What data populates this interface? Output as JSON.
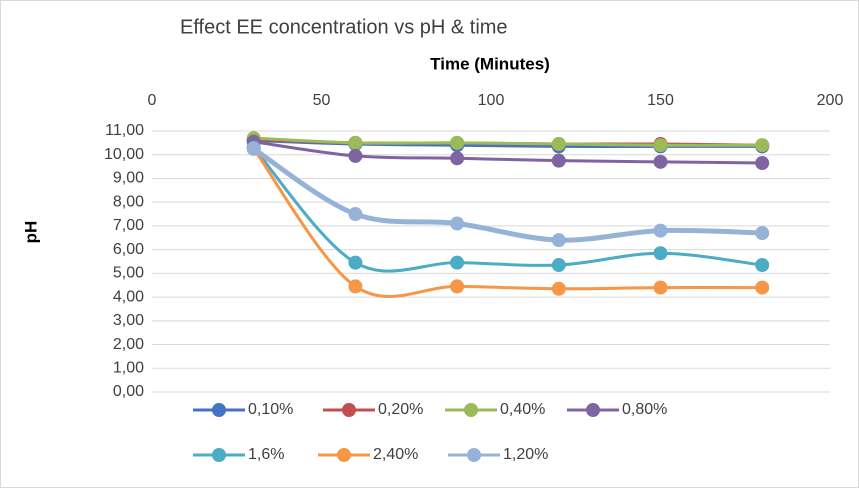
{
  "chart_data": {
    "type": "line",
    "title": "Effect EE concentration vs pH & time",
    "xlabel": "Time (Minutes)",
    "ylabel": "pH",
    "x": [
      30,
      60,
      90,
      120,
      150,
      180
    ],
    "series": [
      {
        "name": "0,10%",
        "color": "#4472c4",
        "values": [
          10.6,
          10.45,
          10.4,
          10.35,
          10.35,
          10.35
        ]
      },
      {
        "name": "0,20%",
        "color": "#c0504d",
        "values": [
          10.65,
          10.5,
          10.5,
          10.45,
          10.45,
          10.4
        ]
      },
      {
        "name": "0,40%",
        "color": "#9bbb59",
        "values": [
          10.7,
          10.5,
          10.5,
          10.45,
          10.4,
          10.4
        ]
      },
      {
        "name": "0,80%",
        "color": "#8064a2",
        "values": [
          10.55,
          9.95,
          9.85,
          9.75,
          9.7,
          9.65
        ]
      },
      {
        "name": "1,6%",
        "color": "#4bacc6",
        "values": [
          10.3,
          5.45,
          5.45,
          5.35,
          5.85,
          5.35
        ]
      },
      {
        "name": "2,40%",
        "color": "#f79646",
        "values": [
          10.25,
          4.45,
          4.45,
          4.35,
          4.4,
          4.4
        ]
      },
      {
        "name": "1,20%",
        "color": "#95b3d7",
        "values": [
          10.25,
          7.5,
          7.1,
          6.4,
          6.8,
          6.7
        ]
      }
    ],
    "xlim": [
      0,
      200
    ],
    "xticks": [
      0,
      50,
      100,
      150,
      200
    ],
    "ylim": [
      0,
      11
    ],
    "yticks": [
      {
        "value": 0,
        "label": "0,00"
      },
      {
        "value": 1,
        "label": "1,00"
      },
      {
        "value": 2,
        "label": "2,00"
      },
      {
        "value": 3,
        "label": "3,00"
      },
      {
        "value": 4,
        "label": "4,00"
      },
      {
        "value": 5,
        "label": "5,00"
      },
      {
        "value": 6,
        "label": "6,00"
      },
      {
        "value": 7,
        "label": "7,00"
      },
      {
        "value": 8,
        "label": "8,00"
      },
      {
        "value": 9,
        "label": "9,00"
      },
      {
        "value": 10,
        "label": "10,00"
      },
      {
        "value": 11,
        "label": "11,00"
      }
    ],
    "grid": true,
    "smooth": true,
    "legend": "bottom"
  }
}
